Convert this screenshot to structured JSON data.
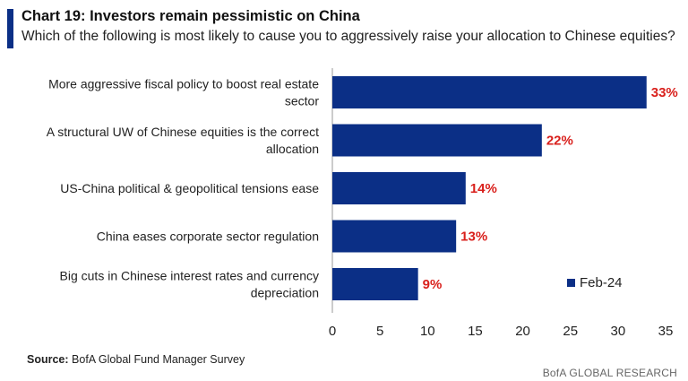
{
  "header": {
    "title": "Chart 19: Investors remain pessimistic on China",
    "subtitle": "Which of the following is most likely to cause you to aggressively raise your allocation to Chinese equities?"
  },
  "chart_data": {
    "type": "bar",
    "orientation": "horizontal",
    "categories": [
      [
        "More aggressive fiscal policy to boost real estate",
        "sector"
      ],
      [
        "A structural UW of Chinese equities is the correct",
        "allocation"
      ],
      [
        "US-China political & geopolitical tensions ease"
      ],
      [
        "China eases corporate sector regulation"
      ],
      [
        "Big cuts in Chinese interest rates and currency",
        "depreciation"
      ]
    ],
    "series": [
      {
        "name": "Feb-24",
        "values": [
          33,
          22,
          14,
          13,
          9
        ]
      }
    ],
    "data_labels": [
      "33%",
      "22%",
      "14%",
      "13%",
      "9%"
    ],
    "xlim": [
      0,
      35
    ],
    "x_ticks": [
      0,
      5,
      10,
      15,
      20,
      25,
      30,
      35
    ],
    "grid": false,
    "legend_position": "bottom-right"
  },
  "colors": {
    "bar": "#0b2f86",
    "data_label": "#d9201c",
    "accent": "#0b2f86"
  },
  "legend": {
    "label": "Feb-24"
  },
  "footer": {
    "source_label": "Source:",
    "source_text": "BofA Global Fund Manager Survey",
    "branding": "BofA GLOBAL RESEARCH"
  }
}
